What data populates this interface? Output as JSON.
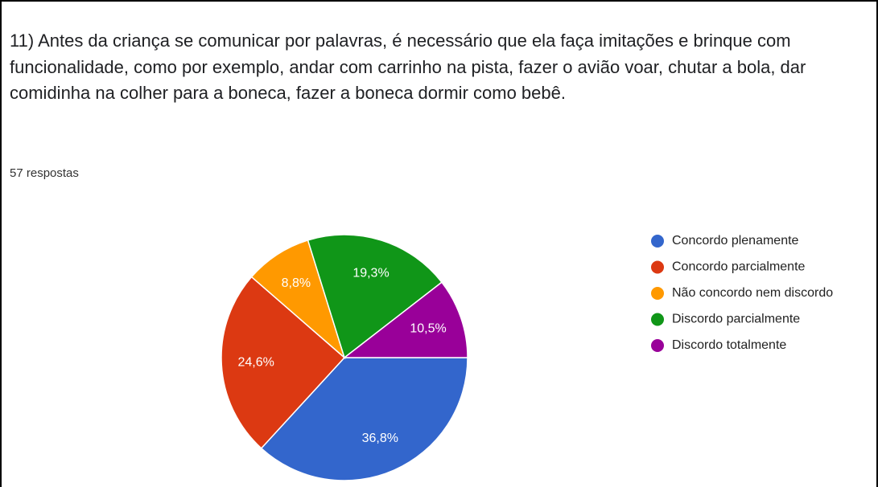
{
  "chart_data": {
    "type": "pie",
    "title": "11) Antes da criança se comunicar por palavras, é necessário que ela faça imitações e brinque com funcionalidade, como por exemplo, andar com carrinho na pista, fazer o avião voar, chutar a bola, dar comidinha na colher para a boneca, fazer a boneca dormir como bebê.",
    "subtitle": "57 respostas",
    "categories": [
      "Concordo plenamente",
      "Concordo parcialmente",
      "Não concordo nem discordo",
      "Discordo parcialmente",
      "Discordo totalmente"
    ],
    "values": [
      36.8,
      24.6,
      8.8,
      19.3,
      10.5
    ],
    "value_labels": [
      "36,8%",
      "24,6%",
      "8,8%",
      "19,3%",
      "10,5%"
    ],
    "colors": [
      "#3366cc",
      "#dc3912",
      "#ff9900",
      "#109618",
      "#990099"
    ],
    "legend": "right"
  }
}
